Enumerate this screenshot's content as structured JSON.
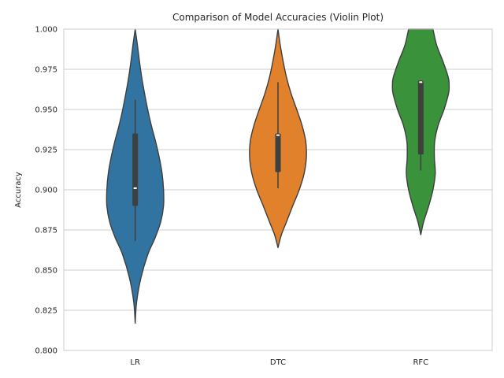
{
  "chart_data": {
    "type": "violin",
    "title": "Comparison of Model Accuracies (Violin Plot)",
    "xlabel": "",
    "ylabel": "Accuracy",
    "ylim": [
      0.8,
      1.0
    ],
    "yticks": [
      0.8,
      0.825,
      0.85,
      0.875,
      0.9,
      0.925,
      0.95,
      0.975,
      1.0
    ],
    "ytick_labels": [
      "0.800",
      "0.825",
      "0.850",
      "0.875",
      "0.900",
      "0.925",
      "0.950",
      "0.975",
      "1.000"
    ],
    "grid": true,
    "categories": [
      "LR",
      "DTC",
      "RFC"
    ],
    "series": [
      {
        "name": "LR",
        "color": "#3274a1",
        "min": 0.868,
        "q1": 0.89,
        "median": 0.901,
        "q3": 0.935,
        "max": 0.956,
        "kde_range": [
          0.817,
          1.0
        ],
        "density": [
          [
            0.817,
            0.0
          ],
          [
            0.83,
            0.05
          ],
          [
            0.845,
            0.2
          ],
          [
            0.86,
            0.45
          ],
          [
            0.87,
            0.7
          ],
          [
            0.88,
            0.9
          ],
          [
            0.89,
            1.0
          ],
          [
            0.9,
            1.0
          ],
          [
            0.91,
            0.95
          ],
          [
            0.92,
            0.85
          ],
          [
            0.93,
            0.72
          ],
          [
            0.94,
            0.57
          ],
          [
            0.95,
            0.44
          ],
          [
            0.96,
            0.33
          ],
          [
            0.97,
            0.23
          ],
          [
            0.98,
            0.15
          ],
          [
            0.99,
            0.08
          ],
          [
            1.0,
            0.0
          ]
        ]
      },
      {
        "name": "DTC",
        "color": "#e1812c",
        "min": 0.901,
        "q1": 0.911,
        "median": 0.934,
        "q3": 0.935,
        "max": 0.967,
        "kde_range": [
          0.864,
          1.0
        ],
        "density": [
          [
            0.864,
            0.0
          ],
          [
            0.872,
            0.12
          ],
          [
            0.88,
            0.3
          ],
          [
            0.89,
            0.52
          ],
          [
            0.9,
            0.75
          ],
          [
            0.91,
            0.92
          ],
          [
            0.92,
            1.0
          ],
          [
            0.93,
            0.98
          ],
          [
            0.94,
            0.85
          ],
          [
            0.95,
            0.66
          ],
          [
            0.96,
            0.46
          ],
          [
            0.97,
            0.3
          ],
          [
            0.98,
            0.18
          ],
          [
            0.99,
            0.08
          ],
          [
            1.0,
            0.0
          ]
        ]
      },
      {
        "name": "RFC",
        "color": "#3a923a",
        "min": 0.912,
        "q1": 0.922,
        "median": 0.967,
        "q3": 0.968,
        "max": 0.968,
        "kde_range": [
          0.872,
          1.0
        ],
        "density": [
          [
            0.872,
            0.0
          ],
          [
            0.88,
            0.1
          ],
          [
            0.89,
            0.28
          ],
          [
            0.9,
            0.43
          ],
          [
            0.91,
            0.51
          ],
          [
            0.92,
            0.48
          ],
          [
            0.93,
            0.49
          ],
          [
            0.94,
            0.61
          ],
          [
            0.95,
            0.82
          ],
          [
            0.96,
            0.98
          ],
          [
            0.965,
            1.0
          ],
          [
            0.97,
            0.97
          ],
          [
            0.98,
            0.78
          ],
          [
            0.99,
            0.56
          ],
          [
            1.0,
            0.43
          ]
        ]
      }
    ]
  }
}
